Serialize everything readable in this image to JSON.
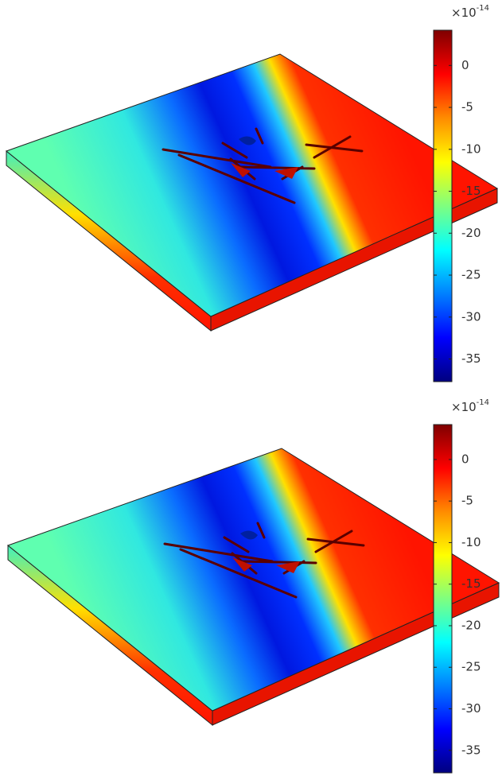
{
  "chart_data": [
    {
      "type": "colorbar",
      "multiplier": "×10",
      "exponent": "-14",
      "colors": [
        "#7f0000",
        "#ff0000",
        "#ff8c00",
        "#ffff00",
        "#7fff7f",
        "#00ffff",
        "#0080ff",
        "#0000ff",
        "#00007f"
      ],
      "ylim": [
        -37.7,
        4.2
      ],
      "yticks": [
        0,
        -5,
        -10,
        -15,
        -20,
        -25,
        -30,
        -35
      ]
    },
    {
      "type": "colorbar",
      "multiplier": "×10",
      "exponent": "-14",
      "colors": [
        "#7f0000",
        "#ff0000",
        "#ff8c00",
        "#ffff00",
        "#7fff7f",
        "#00ffff",
        "#0080ff",
        "#0000ff",
        "#00007f"
      ],
      "ylim": [
        -37.7,
        4.2
      ],
      "yticks": [
        0,
        -5,
        -10,
        -15,
        -20,
        -25,
        -30,
        -35
      ]
    }
  ]
}
